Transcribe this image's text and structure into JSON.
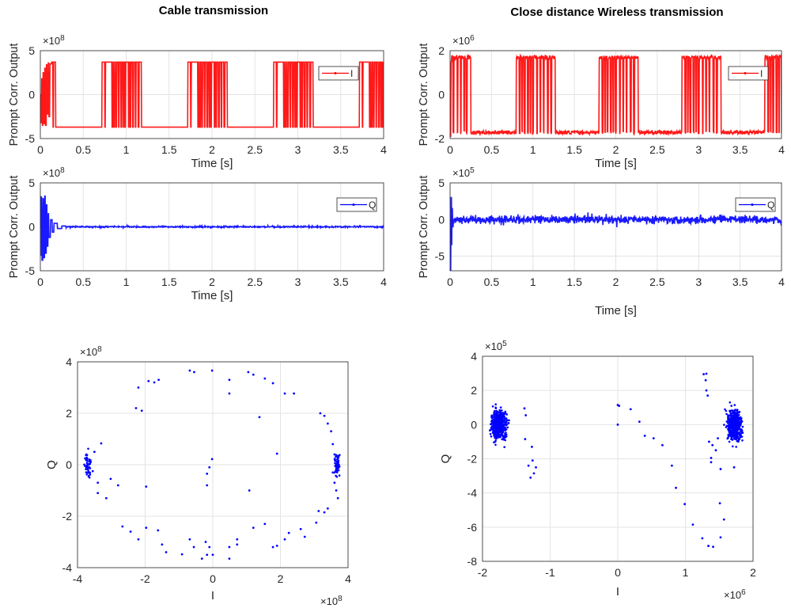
{
  "titles": {
    "left": "Cable transmission",
    "right": "Close distance Wireless transmission"
  },
  "chart_data": [
    {
      "type": "line",
      "xlabel": "Time [s]",
      "ylabel": "Prompt Corr. Output",
      "y_multiplier": "×10",
      "y_exponent": "8",
      "xlim": [
        0,
        4
      ],
      "ylim": [
        -5,
        5
      ],
      "xticks": [
        "0",
        "0.5",
        "1",
        "1.5",
        "2",
        "2.5",
        "3",
        "3.5",
        "4"
      ],
      "yticks": [
        "-5",
        "0",
        "5"
      ],
      "grid": true,
      "legend": "right",
      "series": [
        {
          "name": "I",
          "color": "#ff0000",
          "kind": "square",
          "high": 3.7,
          "low": -3.7,
          "jitter": 0,
          "transient": [
            [
              0,
              0
            ],
            [
              0.008,
              -3.2
            ],
            [
              0.016,
              1.8
            ],
            [
              0.024,
              -3.5
            ],
            [
              0.032,
              2.5
            ],
            [
              0.04,
              -3.3
            ],
            [
              0.05,
              3.0
            ],
            [
              0.06,
              -3.5
            ],
            [
              0.07,
              3.4
            ],
            [
              0.08,
              -2.2
            ],
            [
              0.09,
              3.6
            ],
            [
              0.1,
              -2.5
            ],
            [
              0.11,
              3.5
            ],
            [
              0.13,
              3.7
            ],
            [
              0.145,
              -3.7
            ],
            [
              0.155,
              3.7
            ],
            [
              0.18,
              -3.7
            ]
          ],
          "bursts": [
            {
              "start": 0.72,
              "end": 1.18,
              "dropouts": [
                0.755,
                0.84,
                0.86,
                0.885,
                0.915,
                0.945,
                0.97,
                0.99,
                1.03,
                1.05,
                1.08,
                1.11,
                1.145
              ]
            },
            {
              "start": 1.72,
              "end": 2.18,
              "dropouts": [
                1.755,
                1.84,
                1.86,
                1.885,
                1.915,
                1.945,
                1.97,
                1.99,
                2.03,
                2.05,
                2.08,
                2.11,
                2.145
              ]
            },
            {
              "start": 2.72,
              "end": 3.18,
              "dropouts": [
                2.755,
                2.84,
                2.86,
                2.885,
                2.915,
                2.945,
                2.97,
                2.99,
                3.03,
                3.05,
                3.08,
                3.11,
                3.145
              ]
            },
            {
              "start": 3.72,
              "end": 4.0,
              "dropouts": [
                3.755,
                3.84,
                3.86,
                3.885,
                3.915,
                3.945,
                3.97,
                3.99
              ]
            }
          ]
        }
      ]
    },
    {
      "type": "line",
      "xlabel": "Time [s]",
      "ylabel": "Prompt Corr. Output",
      "y_multiplier": "×10",
      "y_exponent": "8",
      "xlim": [
        0,
        4
      ],
      "ylim": [
        -5,
        5
      ],
      "xticks": [
        "0",
        "0.5",
        "1",
        "1.5",
        "2",
        "2.5",
        "3",
        "3.5",
        "4"
      ],
      "yticks": [
        "-5",
        "0",
        "5"
      ],
      "grid": true,
      "legend": "top-right",
      "series": [
        {
          "name": "Q",
          "color": "#0000ff",
          "kind": "noise",
          "transient": [
            [
              0,
              0
            ],
            [
              0.005,
              3.5
            ],
            [
              0.01,
              -3.3
            ],
            [
              0.015,
              3.4
            ],
            [
              0.02,
              -3.8
            ],
            [
              0.03,
              3.2
            ],
            [
              0.04,
              -3.5
            ],
            [
              0.05,
              3.5
            ],
            [
              0.06,
              -3.0
            ],
            [
              0.07,
              2.5
            ],
            [
              0.08,
              -2.2
            ],
            [
              0.09,
              1.5
            ],
            [
              0.1,
              -1.2
            ],
            [
              0.12,
              0.8
            ],
            [
              0.14,
              -0.6
            ],
            [
              0.16,
              0.4
            ],
            [
              0.2,
              -0.2
            ],
            [
              0.25,
              0.1
            ],
            [
              0.3,
              0
            ]
          ],
          "noise_amplitude": 0.08
        }
      ]
    },
    {
      "type": "scatter",
      "xlabel": "I",
      "ylabel": "Q",
      "x_multiplier": "×10",
      "x_exponent": "8",
      "y_multiplier": "×10",
      "y_exponent": "8",
      "xlim": [
        -4,
        4
      ],
      "ylim": [
        -4,
        4
      ],
      "xticks": [
        "-4",
        "-2",
        "0",
        "2",
        "4"
      ],
      "yticks": [
        "-4",
        "-2",
        "0",
        "2",
        "4"
      ],
      "grid": true,
      "series": [
        {
          "color": "#0000ff",
          "clusters": [
            {
              "center": [
                -3.7,
                0
              ],
              "spread": [
                0.04,
                0.3
              ],
              "count": 60
            },
            {
              "center": [
                3.68,
                0
              ],
              "spread": [
                0.04,
                0.25
              ],
              "count": 60
            }
          ],
          "points": [
            [
              -0.68,
              3.66
            ],
            [
              -0.55,
              3.6
            ],
            [
              -0.02,
              3.66
            ],
            [
              1.05,
              3.6
            ],
            [
              1.2,
              3.5
            ],
            [
              0.49,
              3.3
            ],
            [
              1.54,
              3.35
            ],
            [
              -2.2,
              3.0
            ],
            [
              -1.73,
              3.2
            ],
            [
              -1.6,
              3.3
            ],
            [
              -1.9,
              3.25
            ],
            [
              1.78,
              3.17
            ],
            [
              2.13,
              2.77
            ],
            [
              2.4,
              2.77
            ],
            [
              -2.27,
              2.2
            ],
            [
              -2.1,
              2.1
            ],
            [
              1.38,
              1.85
            ],
            [
              0.49,
              2.77
            ],
            [
              3.18,
              2.0
            ],
            [
              3.3,
              1.9
            ],
            [
              3.4,
              1.6
            ],
            [
              3.5,
              1.3
            ],
            [
              3.55,
              0.8
            ],
            [
              3.6,
              0.4
            ],
            [
              -3.3,
              0.83
            ],
            [
              -3.5,
              0.5
            ],
            [
              -3.55,
              -0.25
            ],
            [
              -3.4,
              -0.7
            ],
            [
              -3.02,
              -0.55
            ],
            [
              -2.8,
              -0.8
            ],
            [
              -3.4,
              -1.1
            ],
            [
              -3.15,
              -1.3
            ],
            [
              3.55,
              -0.3
            ],
            [
              3.6,
              -0.7
            ],
            [
              3.65,
              -1.0
            ],
            [
              3.7,
              -1.3
            ],
            [
              3.4,
              -1.7
            ],
            [
              3.3,
              -1.85
            ],
            [
              -2.67,
              -2.4
            ],
            [
              -2.43,
              -2.6
            ],
            [
              -2.2,
              -2.9
            ],
            [
              -1.97,
              -2.45
            ],
            [
              -1.62,
              -2.55
            ],
            [
              -1.5,
              -3.1
            ],
            [
              -1.38,
              -3.4
            ],
            [
              -0.68,
              -2.9
            ],
            [
              -0.56,
              -3.2
            ],
            [
              -0.21,
              -3.0
            ],
            [
              -0.17,
              -3.5
            ],
            [
              -0.1,
              -3.2
            ],
            [
              0.0,
              -3.5
            ],
            [
              0.49,
              -3.2
            ],
            [
              0.72,
              -2.9
            ],
            [
              1.2,
              -2.45
            ],
            [
              1.54,
              -2.3
            ],
            [
              1.78,
              -3.2
            ],
            [
              1.9,
              -3.15
            ],
            [
              2.13,
              -2.9
            ],
            [
              2.25,
              -2.65
            ],
            [
              2.6,
              -2.5
            ],
            [
              2.72,
              -2.8
            ],
            [
              3.06,
              -2.25
            ],
            [
              3.13,
              -1.8
            ],
            [
              -0.91,
              -3.48
            ],
            [
              -0.32,
              -3.65
            ],
            [
              0.49,
              -3.65
            ],
            [
              0.72,
              -3.1
            ],
            [
              -0.02,
              0.22
            ],
            [
              -0.1,
              -0.1
            ],
            [
              -0.17,
              -0.35
            ],
            [
              -0.17,
              -0.8
            ],
            [
              1.08,
              -1.0
            ],
            [
              1.9,
              0.43
            ],
            [
              -1.97,
              -0.85
            ]
          ]
        }
      ]
    },
    {
      "type": "line",
      "xlabel": "Time [s]",
      "ylabel": "Prompt Corr. Output",
      "y_multiplier": "×10",
      "y_exponent": "6",
      "xlim": [
        0,
        4
      ],
      "ylim": [
        -2,
        2
      ],
      "xticks": [
        "0",
        "0.5",
        "1",
        "1.5",
        "2",
        "2.5",
        "3",
        "3.5",
        "4"
      ],
      "yticks": [
        "-2",
        "0",
        "2"
      ],
      "grid": true,
      "legend": "top-right",
      "series": [
        {
          "name": "I",
          "color": "#ff0000",
          "kind": "square",
          "high": 1.7,
          "low": -1.72,
          "jitter": 0.08,
          "transient": [
            [
              0,
              -1.9
            ],
            [
              0.01,
              1.5
            ],
            [
              0.02,
              1.6
            ]
          ],
          "bursts": [
            {
              "start": 0.0,
              "end": 0.25,
              "dropouts": [
                0.04,
                0.09,
                0.13,
                0.17,
                0.2
              ]
            },
            {
              "start": 0.8,
              "end": 1.27,
              "dropouts": [
                0.84,
                0.87,
                0.9,
                0.94,
                0.97,
                1.0,
                1.05,
                1.09,
                1.13,
                1.18,
                1.22
              ]
            },
            {
              "start": 1.8,
              "end": 2.27,
              "dropouts": [
                1.84,
                1.87,
                1.9,
                1.94,
                1.97,
                2.0,
                2.05,
                2.09,
                2.13,
                2.18,
                2.22
              ]
            },
            {
              "start": 2.8,
              "end": 3.27,
              "dropouts": [
                2.84,
                2.87,
                2.9,
                2.94,
                2.97,
                3.0,
                3.05,
                3.09,
                3.13,
                3.18,
                3.22
              ]
            },
            {
              "start": 3.8,
              "end": 4.0,
              "dropouts": [
                3.84,
                3.87,
                3.9,
                3.94,
                3.97
              ]
            }
          ]
        }
      ]
    },
    {
      "type": "line",
      "xlabel": "Time [s]",
      "ylabel": "Prompt Corr. Output",
      "y_multiplier": "×10",
      "y_exponent": "5",
      "xlim": [
        0,
        4
      ],
      "ylim": [
        -7,
        5
      ],
      "xticks": [
        "0",
        "0.5",
        "1",
        "1.5",
        "2",
        "2.5",
        "3",
        "3.5",
        "4"
      ],
      "yticks": [
        "-5",
        "0",
        "5"
      ],
      "grid": true,
      "legend": "top-right",
      "series": [
        {
          "name": "Q",
          "color": "#0000ff",
          "kind": "noise",
          "transient": [
            [
              0,
              0
            ],
            [
              0.006,
              -7.0
            ],
            [
              0.012,
              3.0
            ],
            [
              0.018,
              -3.5
            ],
            [
              0.024,
              1.5
            ],
            [
              0.03,
              -1.0
            ],
            [
              0.04,
              0
            ]
          ],
          "noise_amplitude": 0.55
        }
      ]
    },
    {
      "type": "scatter",
      "xlabel": "I",
      "ylabel": "Q",
      "x_multiplier": "×10",
      "x_exponent": "6",
      "y_multiplier": "×10",
      "y_exponent": "5",
      "xlim": [
        -2,
        2
      ],
      "ylim": [
        -8,
        4
      ],
      "xticks": [
        "-2",
        "-1",
        "0",
        "1",
        "2"
      ],
      "yticks": [
        "-8",
        "-6",
        "-4",
        "-2",
        "0",
        "2",
        "4"
      ],
      "grid": true,
      "series": [
        {
          "color": "#0000ff",
          "clusters": [
            {
              "center": [
                -1.76,
                0
              ],
              "spread": [
                0.055,
                0.42
              ],
              "count": 500
            },
            {
              "center": [
                1.73,
                0
              ],
              "spread": [
                0.055,
                0.45
              ],
              "count": 500
            }
          ],
          "points": [
            [
              1.27,
              2.95
            ],
            [
              1.31,
              2.98
            ],
            [
              1.3,
              2.6
            ],
            [
              1.31,
              2.0
            ],
            [
              1.33,
              1.7
            ],
            [
              0.0,
              1.15
            ],
            [
              0.02,
              1.1
            ],
            [
              0.19,
              0.9
            ],
            [
              0.32,
              0.17
            ],
            [
              0.4,
              -0.65
            ],
            [
              0.53,
              -0.8
            ],
            [
              0.66,
              -1.2
            ],
            [
              0.8,
              -2.4
            ],
            [
              0.86,
              -3.7
            ],
            [
              0.99,
              -4.65
            ],
            [
              1.11,
              -5.85
            ],
            [
              1.25,
              -6.65
            ],
            [
              1.34,
              -7.1
            ],
            [
              1.41,
              -7.15
            ],
            [
              1.51,
              -4.6
            ],
            [
              1.57,
              -5.55
            ],
            [
              1.52,
              -6.6
            ],
            [
              1.52,
              -2.6
            ],
            [
              1.38,
              -1.95
            ],
            [
              1.38,
              -2.2
            ],
            [
              1.72,
              -2.5
            ],
            [
              0.0,
              0.0
            ],
            [
              -1.38,
              0.95
            ],
            [
              -1.36,
              0.55
            ],
            [
              -1.37,
              -0.85
            ],
            [
              -1.27,
              -1.3
            ],
            [
              -1.26,
              -2.1
            ],
            [
              -1.32,
              -2.4
            ],
            [
              -1.29,
              -3.1
            ],
            [
              -1.24,
              -2.85
            ],
            [
              -1.21,
              -2.5
            ],
            [
              1.35,
              -1.0
            ],
            [
              1.4,
              -1.2
            ],
            [
              1.45,
              -1.5
            ],
            [
              1.48,
              -0.8
            ]
          ]
        }
      ]
    }
  ]
}
